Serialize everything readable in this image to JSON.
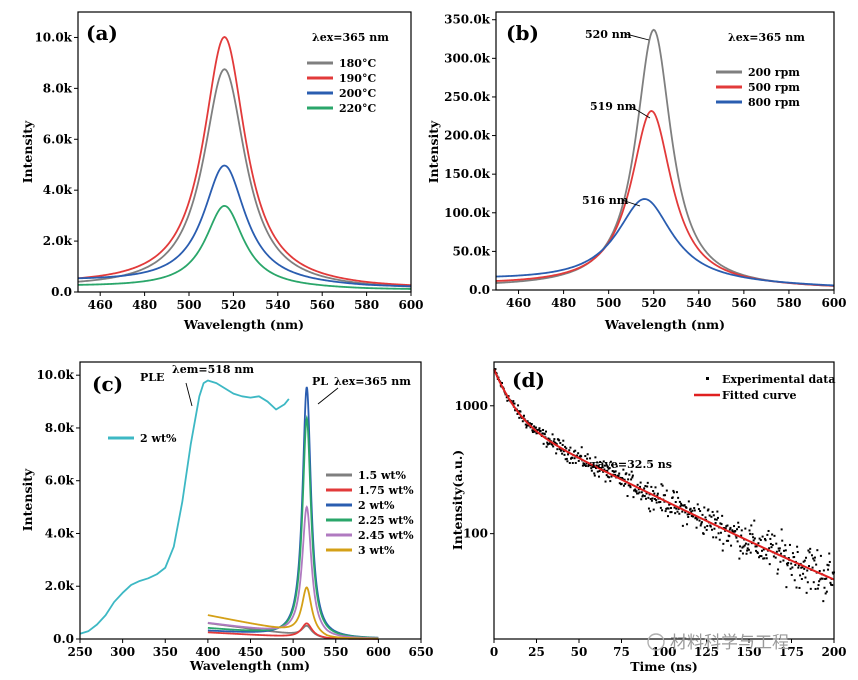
{
  "chart_data": [
    {
      "panel": "(a)",
      "type": "line",
      "xlabel": "Wavelength (nm)",
      "ylabel": "Intensity",
      "xlim": [
        450,
        600
      ],
      "ylim": [
        0,
        11000
      ],
      "xticks": [
        460,
        480,
        500,
        520,
        540,
        560,
        580,
        600
      ],
      "xtick_labels": [
        "460",
        "480",
        "500",
        "520",
        "540",
        "560",
        "580",
        "600"
      ],
      "yticks": [
        0,
        2000,
        4000,
        6000,
        8000,
        10000
      ],
      "ytick_labels": [
        "0.0",
        "2.0k",
        "4.0k",
        "6.0k",
        "8.0k",
        "10.0k"
      ],
      "excitation_label": "λex=365 nm",
      "legend_position": "top-right",
      "series": [
        {
          "name": "180°C",
          "color": "#7f7f7f",
          "peak_x": 516,
          "peak_y": 8650,
          "fwhm": 23,
          "baseline": 150
        },
        {
          "name": "190°C",
          "color": "#e23a3a",
          "peak_x": 516,
          "peak_y": 9850,
          "fwhm": 23,
          "baseline": 250
        },
        {
          "name": "200°C",
          "color": "#2a5db0",
          "peak_x": 516,
          "peak_y": 4700,
          "fwhm": 23,
          "baseline": 400
        },
        {
          "name": "220°C",
          "color": "#2aa66a",
          "peak_x": 516,
          "peak_y": 3250,
          "fwhm": 21,
          "baseline": 200
        }
      ]
    },
    {
      "panel": "(b)",
      "type": "line",
      "xlabel": "Wavelength (nm)",
      "ylabel": "Intensity",
      "xlim": [
        450,
        600
      ],
      "ylim": [
        0,
        360000
      ],
      "xticks": [
        460,
        480,
        500,
        520,
        540,
        560,
        580,
        600
      ],
      "xtick_labels": [
        "460",
        "480",
        "500",
        "520",
        "540",
        "560",
        "580",
        "600"
      ],
      "yticks": [
        0,
        50000,
        100000,
        150000,
        200000,
        250000,
        300000,
        350000
      ],
      "ytick_labels": [
        "0.0",
        "50.0k",
        "100.0k",
        "150.0k",
        "200.0k",
        "250.0k",
        "300.0k",
        "350.0k"
      ],
      "excitation_label": "λex=365 nm",
      "legend_position": "top-right",
      "series": [
        {
          "name": "200 rpm",
          "color": "#7f7f7f",
          "peak_x": 520,
          "peak_y": 335000,
          "fwhm": 19,
          "baseline": 3000
        },
        {
          "name": "500 rpm",
          "color": "#e23a3a",
          "peak_x": 519,
          "peak_y": 228000,
          "fwhm": 22,
          "baseline": 6000
        },
        {
          "name": "800 rpm",
          "color": "#2a5db0",
          "peak_x": 516,
          "peak_y": 110000,
          "fwhm": 30,
          "baseline": 12000
        }
      ],
      "annotations": [
        "520 nm",
        "519 nm",
        "516 nm"
      ]
    },
    {
      "panel": "(c)",
      "type": "line",
      "xlabel": "Wavelength (nm)",
      "ylabel": "Intensity",
      "xlim": [
        250,
        650
      ],
      "ylim": [
        0,
        10500
      ],
      "xticks": [
        250,
        300,
        350,
        400,
        450,
        500,
        550,
        600,
        650
      ],
      "xtick_labels": [
        "250",
        "300",
        "350",
        "400",
        "450",
        "500",
        "550",
        "600",
        "650"
      ],
      "yticks": [
        0,
        2000,
        4000,
        6000,
        8000,
        10000
      ],
      "ytick_labels": [
        "0.0",
        "2.0k",
        "4.0k",
        "6.0k",
        "8.0k",
        "10.0k"
      ],
      "ple_label": "PLE",
      "ple_em_label": "λem=518 nm",
      "pl_label": "PL",
      "pl_ex_label": "λex=365 nm",
      "ple_series": {
        "name": "2 wt%",
        "color": "#3db8c4",
        "x": [
          250,
          260,
          270,
          280,
          290,
          300,
          310,
          320,
          330,
          340,
          350,
          360,
          370,
          380,
          390,
          395,
          400,
          410,
          420,
          430,
          440,
          450,
          460,
          470,
          480,
          490,
          495
        ],
        "y": [
          200,
          300,
          550,
          900,
          1400,
          1750,
          2050,
          2200,
          2300,
          2450,
          2700,
          3500,
          5200,
          7400,
          9200,
          9700,
          9800,
          9700,
          9500,
          9300,
          9200,
          9150,
          9200,
          9000,
          8700,
          8900,
          9100
        ]
      },
      "pl_series": [
        {
          "name": "1.5 wt%",
          "color": "#7f7f7f",
          "peak_x": 516,
          "peak_y": 400,
          "fwhm": 14,
          "tail_start": 600
        },
        {
          "name": "1.75 wt%",
          "color": "#e23a3a",
          "peak_x": 516,
          "peak_y": 550,
          "fwhm": 15,
          "tail_start": 250
        },
        {
          "name": "2 wt%",
          "color": "#2a5db0",
          "peak_x": 516,
          "peak_y": 9500,
          "fwhm": 12,
          "tail_start": 300
        },
        {
          "name": "2.25 wt%",
          "color": "#2aa66a",
          "peak_x": 516,
          "peak_y": 8300,
          "fwhm": 12,
          "tail_start": 400
        },
        {
          "name": "2.45 wt%",
          "color": "#b07ac0",
          "peak_x": 516,
          "peak_y": 4900,
          "fwhm": 13,
          "tail_start": 600
        },
        {
          "name": "3 wt%",
          "color": "#d4a017",
          "peak_x": 516,
          "peak_y": 1800,
          "fwhm": 14,
          "tail_start": 900
        }
      ]
    },
    {
      "panel": "(d)",
      "type": "scatter",
      "xlabel": "Time (ns)",
      "ylabel": "Intensity(a.u.)",
      "xlim": [
        0,
        200
      ],
      "ylim_log": [
        15,
        2200
      ],
      "yscale": "log",
      "xticks": [
        0,
        25,
        50,
        75,
        100,
        125,
        150,
        175,
        200
      ],
      "xtick_labels": [
        "0",
        "25",
        "50",
        "75",
        "100",
        "125",
        "150",
        "175",
        "200"
      ],
      "yticks": [
        100,
        1000
      ],
      "ytick_labels": [
        "100",
        "1000"
      ],
      "tau_label": "τave=32.5 ns",
      "legend_position": "top-right",
      "series": [
        {
          "name": "Experimental data",
          "color": "#000000",
          "kind": "points"
        },
        {
          "name": "Fitted curve",
          "color": "#e02020",
          "kind": "line"
        }
      ],
      "fit": {
        "a1": 1100,
        "t1": 9,
        "a2": 820,
        "t2": 65,
        "bg": 6
      }
    }
  ],
  "watermark": "材料科学与工程"
}
